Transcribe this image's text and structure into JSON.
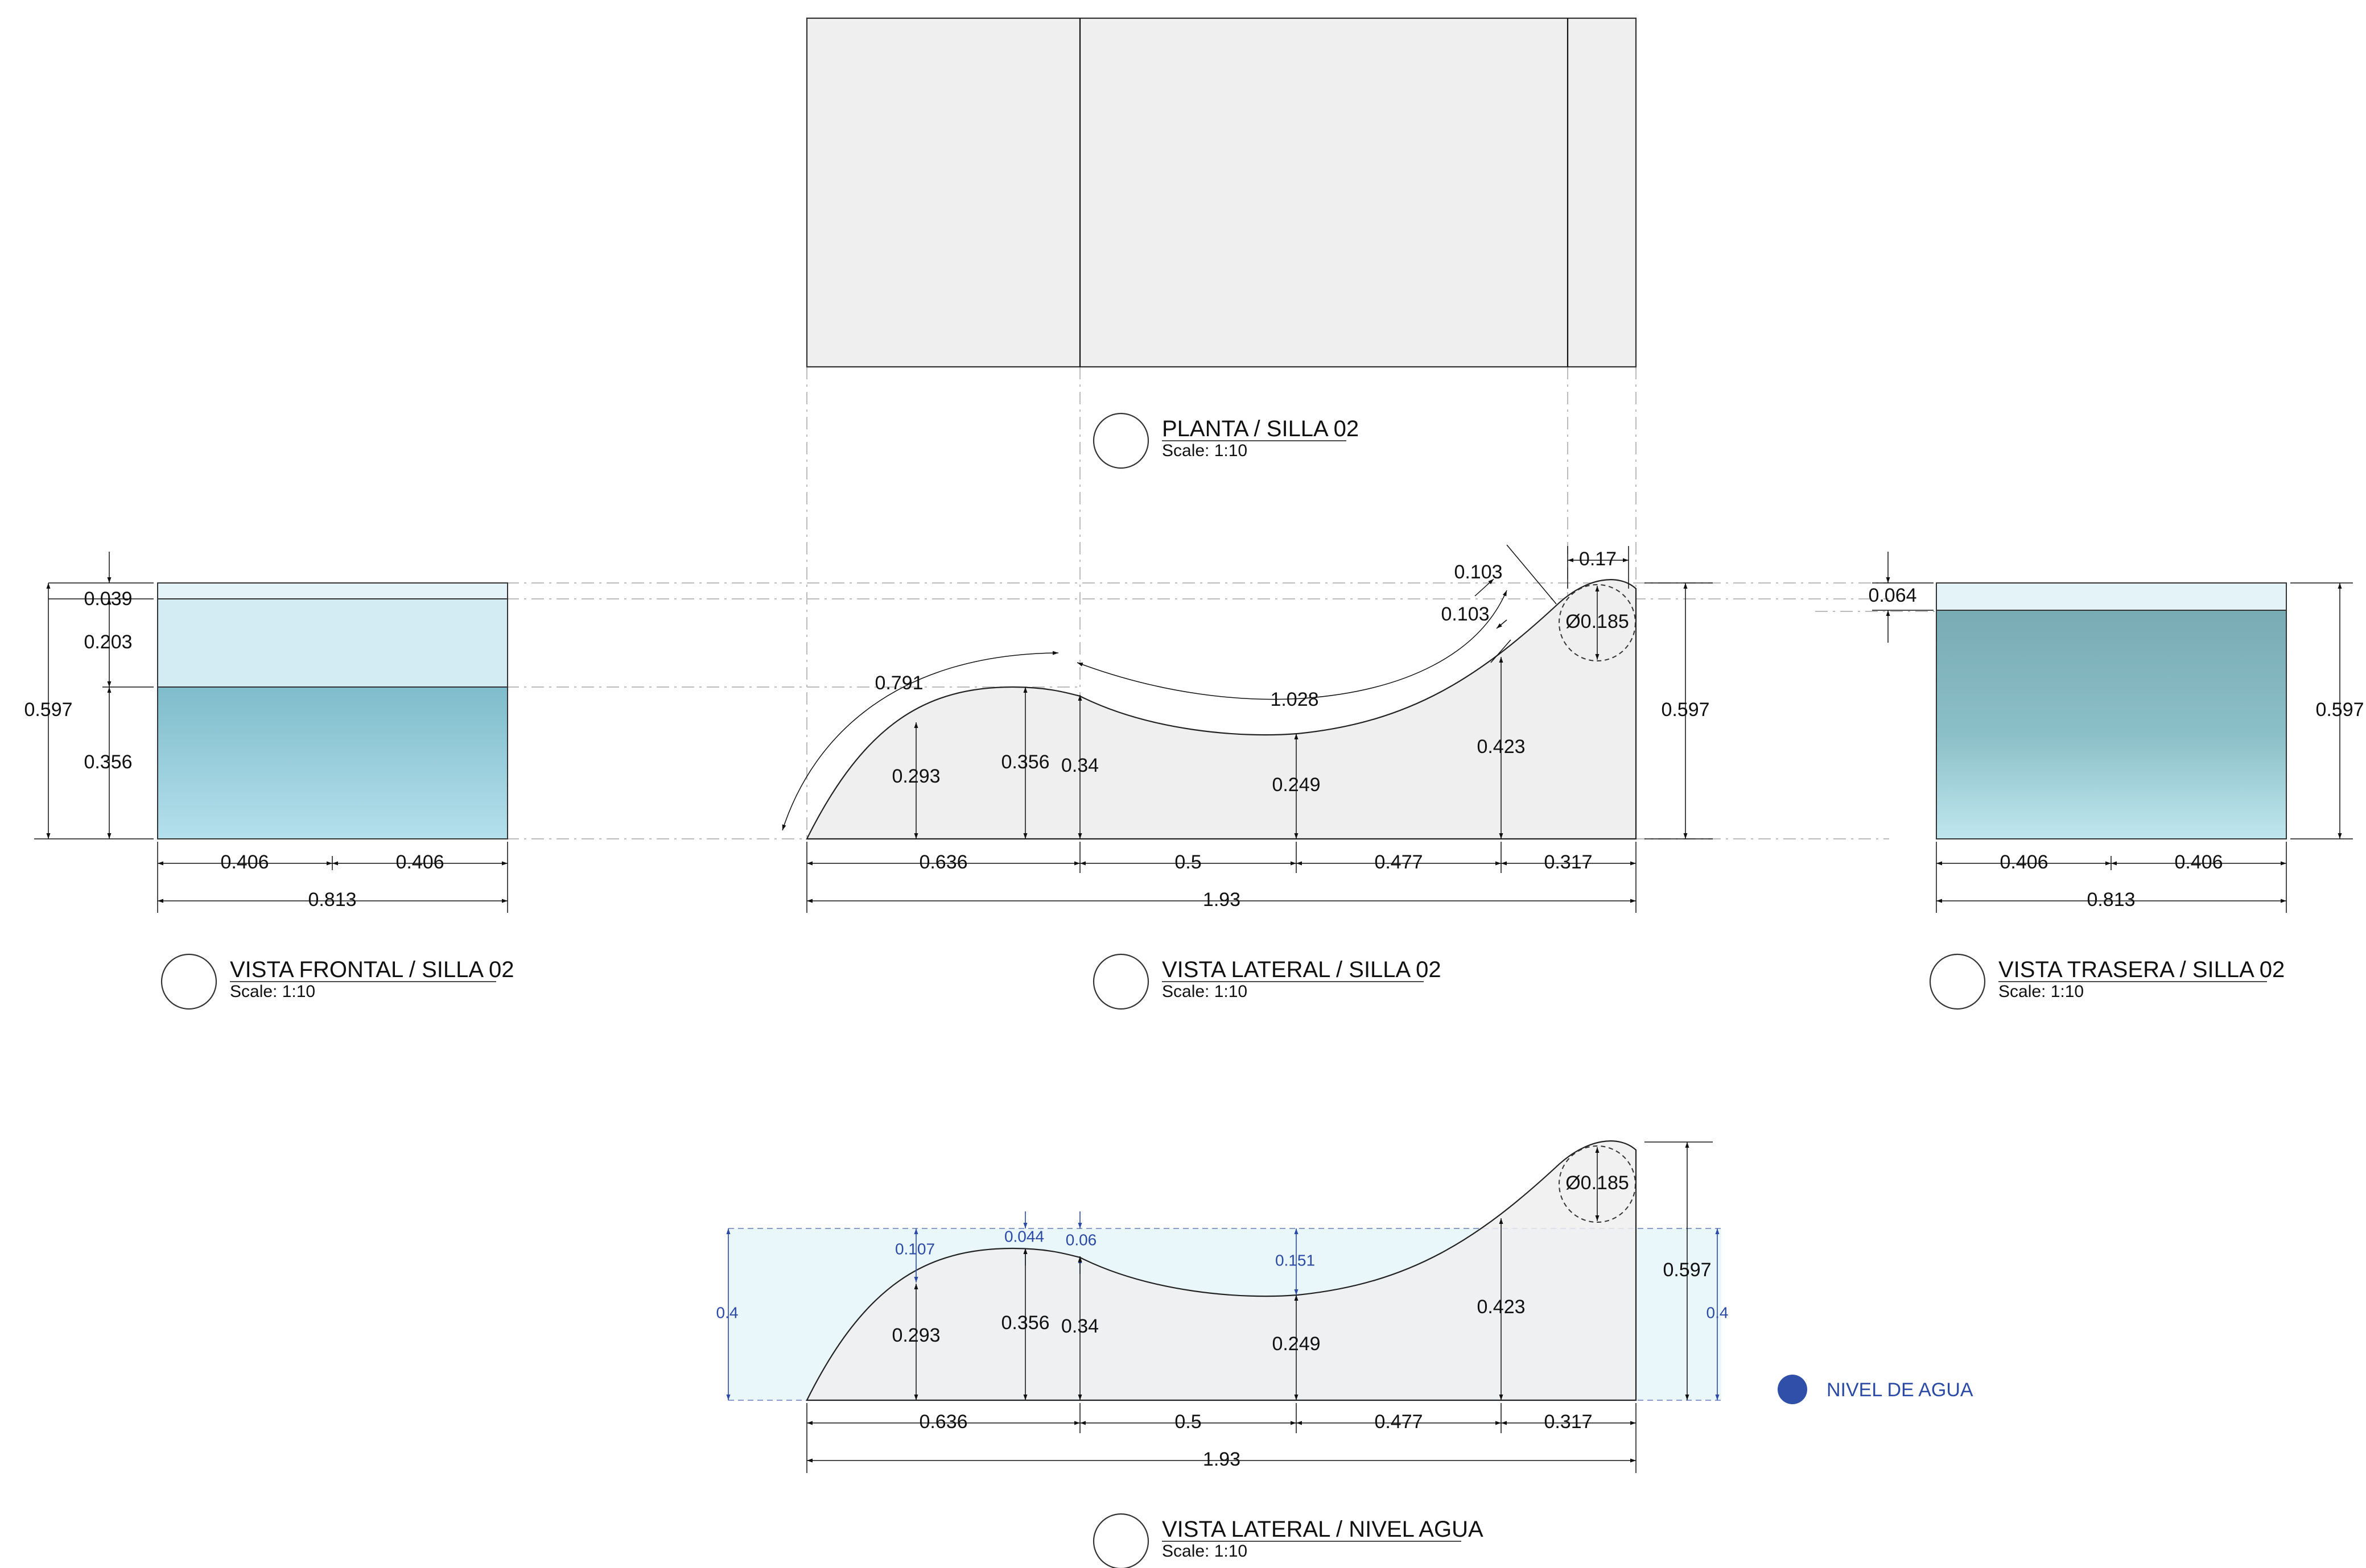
{
  "views": {
    "plan": {
      "title": "PLANTA / SILLA 02",
      "scale": "Scale: 1:10"
    },
    "front": {
      "title": "VISTA FRONTAL / SILLA 02",
      "scale": "Scale: 1:10",
      "dims": {
        "top": "0.039",
        "mid": "0.203",
        "low": "0.356",
        "height": "0.597",
        "half_l": "0.406",
        "half_r": "0.406",
        "width": "0.813"
      }
    },
    "side": {
      "title": "VISTA LATERAL / SILLA 02",
      "scale": "Scale: 1:10",
      "dims": {
        "arc1": "0.791",
        "arc2": "1.028",
        "tan1": "0.103",
        "tan2": "0.103",
        "top_w": "0.17",
        "dia": "Ø0.185",
        "h1": "0.293",
        "h2": "0.356",
        "h3": "0.34",
        "h4": "0.249",
        "h5": "0.423",
        "height": "0.597",
        "w1": "0.636",
        "w2": "0.5",
        "w3": "0.477",
        "w4": "0.317",
        "total": "1.93"
      }
    },
    "back": {
      "title": "VISTA TRASERA / SILLA 02",
      "scale": "Scale: 1:10",
      "dims": {
        "top": "0.064",
        "height": "0.597",
        "half_l": "0.406",
        "half_r": "0.406",
        "width": "0.813"
      }
    },
    "water": {
      "title": "VISTA LATERAL / NIVEL AGUA",
      "scale": "Scale: 1:10",
      "dims": {
        "dia": "Ø0.185",
        "d1": "0.107",
        "d2": "0.044",
        "d3": "0.06",
        "d4": "0.151",
        "lvl_l": "0.4",
        "lvl_r": "0.4",
        "h1": "0.293",
        "h2": "0.356",
        "h3": "0.34",
        "h4": "0.249",
        "h5": "0.423",
        "height": "0.597",
        "w1": "0.636",
        "w2": "0.5",
        "w3": "0.477",
        "w4": "0.317",
        "total": "1.93"
      }
    }
  },
  "legend": {
    "label": "NIVEL DE AGUA",
    "color": "#2f4fa8"
  },
  "colors": {
    "water_light": "#d6eef5",
    "water_deep": "#6fb6c8",
    "water_back": "#76aeb6",
    "solid": "#efefef",
    "water_zone": "#e9f6fa"
  }
}
